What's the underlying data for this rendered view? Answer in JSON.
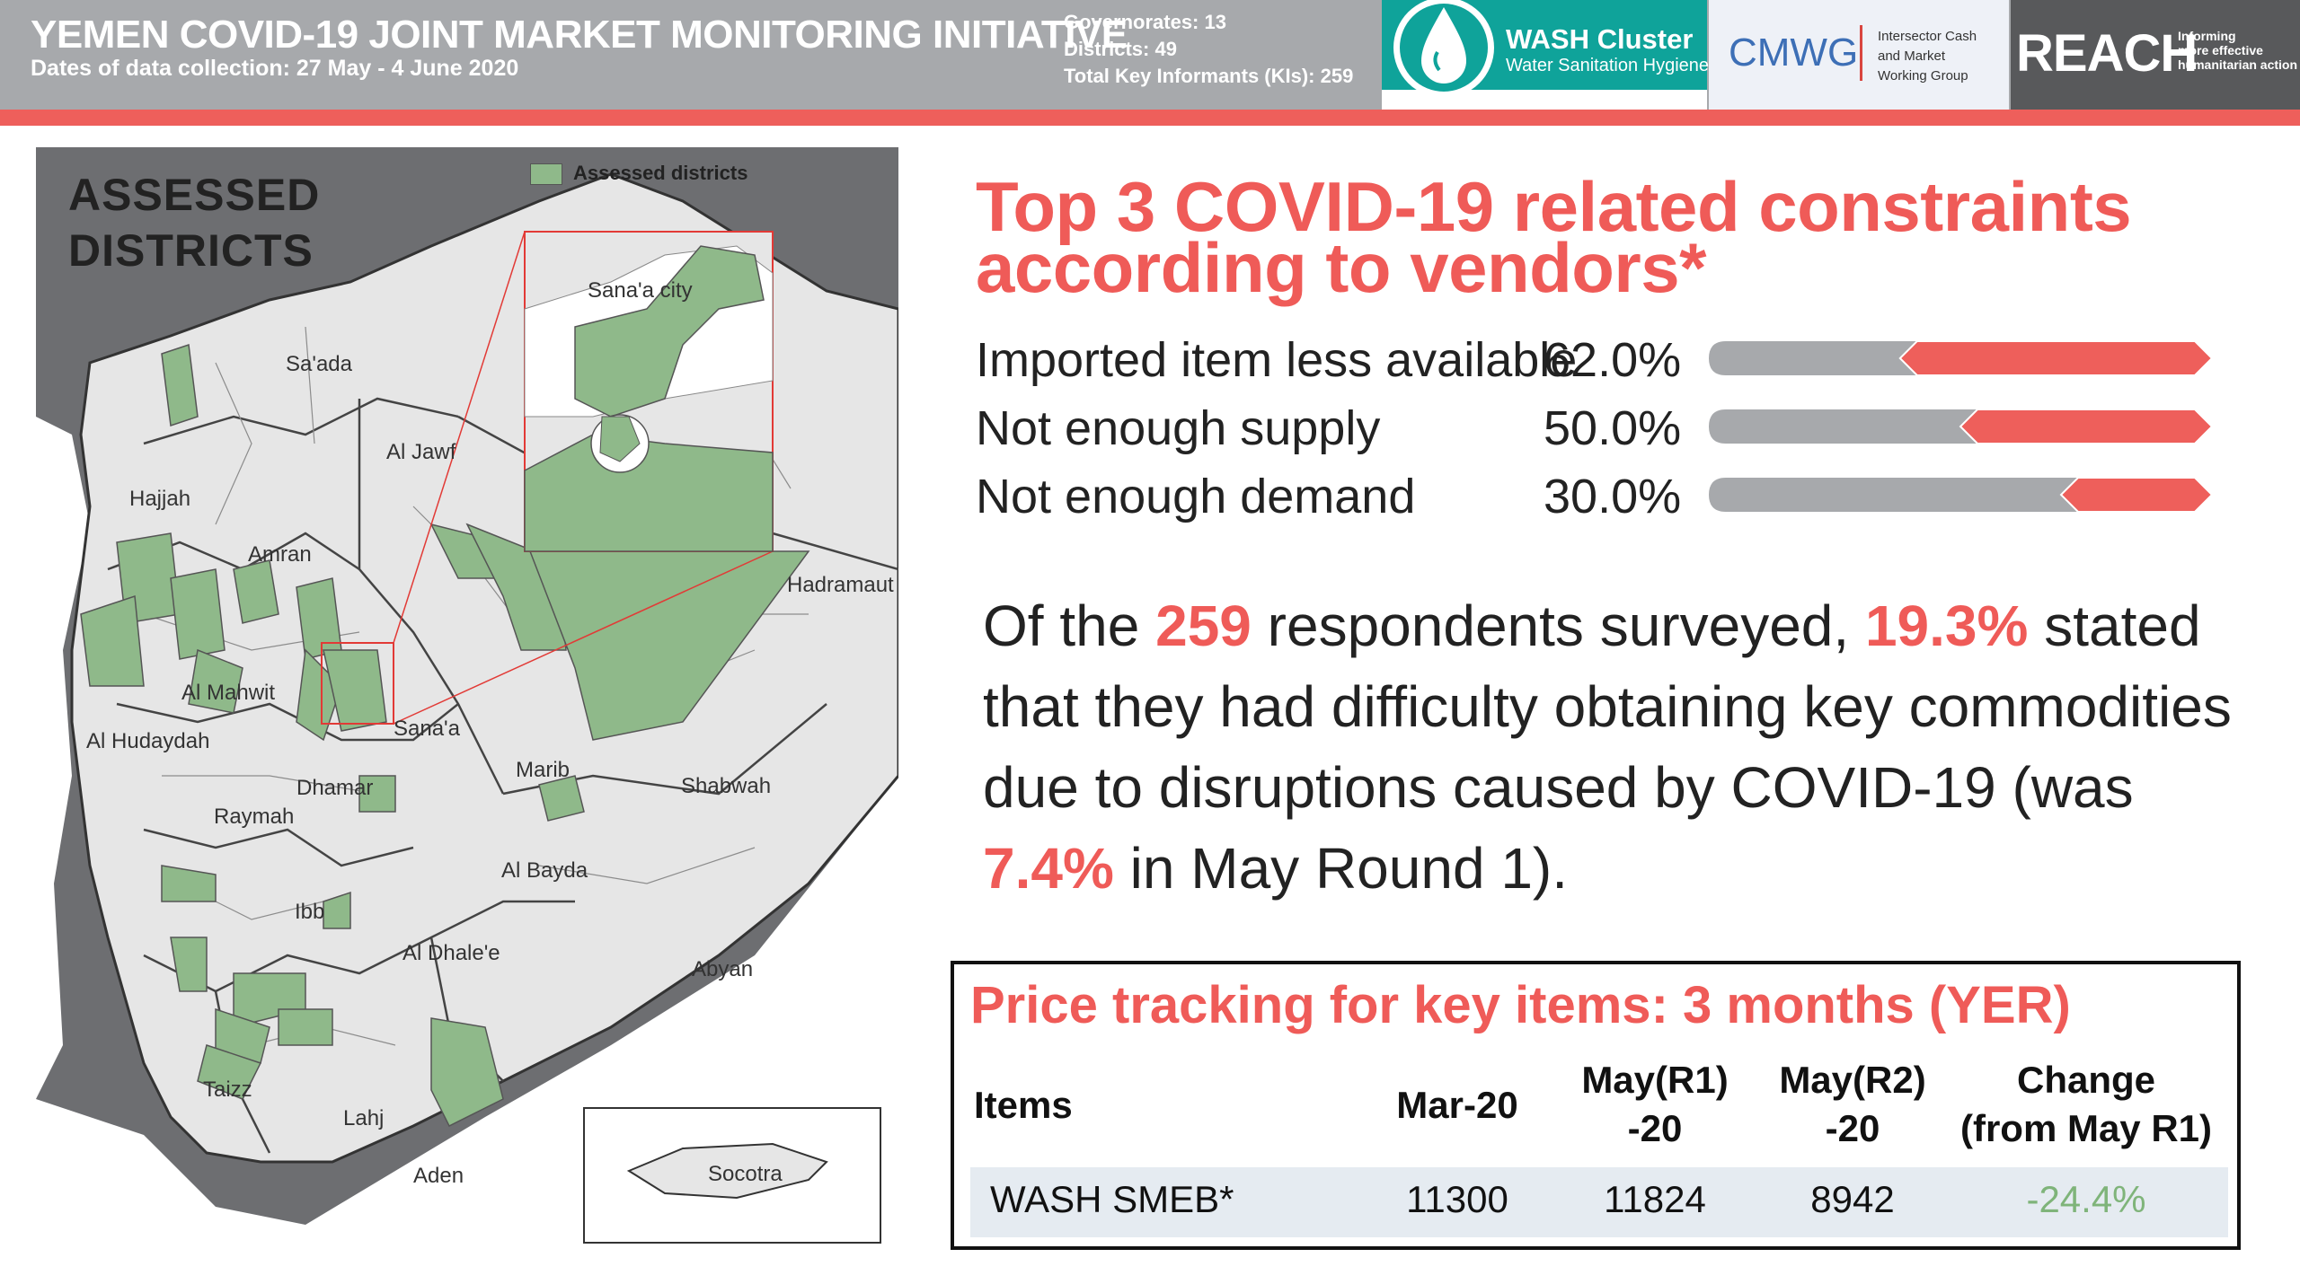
{
  "header": {
    "title": "YEMEN COVID-19 JOINT MARKET MONITORING INITIATIVE",
    "subtitle": "Dates of data collection: 27 May - 4 June 2020",
    "stats": [
      "Governorates: 13",
      "Districts: 49",
      "Total Key Informants (KIs): 259"
    ],
    "logos": {
      "wash_title": "WASH Cluster",
      "wash_sub": "Water Sanitation Hygiene",
      "cmwg": "CMWG",
      "cmwg_sub": [
        "Intersector Cash",
        "and Market",
        "Working Group"
      ],
      "reach": "REACH",
      "reach_sub": [
        "Informing",
        "more effective",
        "humanitarian action"
      ]
    },
    "colors": {
      "header_gray": "#a7a9ac",
      "accent_red": "#ee5f5b",
      "wash_teal": "#0fa39a",
      "reach_dark": "#58595b"
    }
  },
  "map": {
    "title_lines": [
      "ASSESSED",
      "DISTRICTS"
    ],
    "legend_label": "Assessed districts",
    "legend_color": "#8fb98a",
    "labels": [
      "Sa'ada",
      "Al Jawf",
      "Hajjah",
      "Amran",
      "Hadramaut",
      "Al Mahwit",
      "Sana'a",
      "Al Hudaydah",
      "Marib",
      "Shabwah",
      "Dhamar",
      "Raymah",
      "Al Bayda",
      "Ibb",
      "Al Dhale'e",
      "Abyan",
      "Taizz",
      "Lahj",
      "Aden",
      "Sana'a city",
      "Socotra"
    ]
  },
  "constraints": {
    "title_lines": [
      "Top 3 COVID-19 related constraints",
      "according to vendors*"
    ],
    "items": [
      {
        "label": "Imported item less available",
        "pct_text": "62.0%",
        "value": 62.0
      },
      {
        "label": "Not enough supply",
        "pct_text": "50.0%",
        "value": 50.0
      },
      {
        "label": "Not enough demand",
        "pct_text": "30.0%",
        "value": 30.0
      }
    ]
  },
  "statement": {
    "p1": "Of the ",
    "n_respondents": "259",
    "p2": " respondents surveyed, ",
    "pct": "19.3%",
    "p3": " stated that they had difficulty obtaining key commodities due to disruptions caused by COVID-19 (was ",
    "prev_pct": "7.4%",
    "p4": " in May Round 1)."
  },
  "price_table": {
    "title": "Price tracking for key items: 3 months (YER)",
    "headers": [
      "Items",
      "Mar-20",
      "May(R1)\n-20",
      "May(R2)\n-20",
      "Change\n(from May R1)"
    ],
    "rows": [
      {
        "item": "WASH SMEB*",
        "mar": "11300",
        "may_r1": "11824",
        "may_r2": "8942",
        "change": "-24.4%"
      }
    ],
    "change_color": "#7fb47a"
  }
}
